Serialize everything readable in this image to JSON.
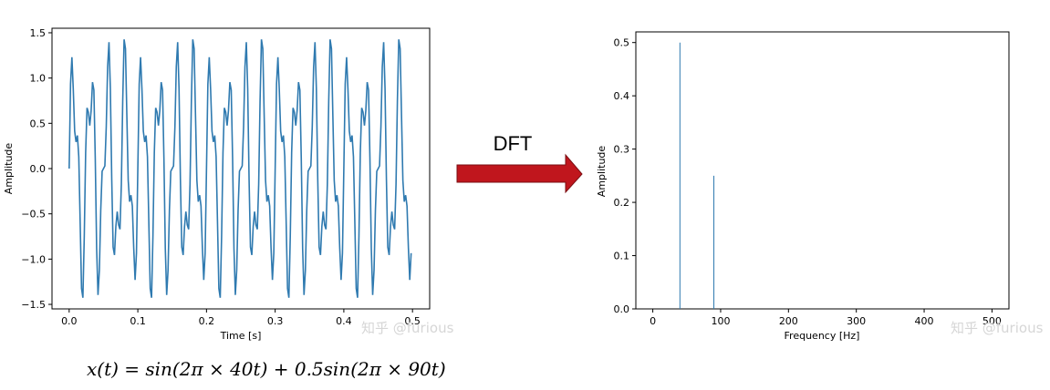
{
  "arrow": {
    "label": "DFT",
    "color": "#c0161d"
  },
  "formula": "x(t) = sin(2π × 40t) + 0.5sin(2π × 90t)",
  "watermark": "知乎 @furious",
  "chart_data": [
    {
      "type": "line",
      "xlabel": "Time [s]",
      "ylabel": "Amplitude",
      "xlim": [
        -0.025,
        0.525
      ],
      "ylim": [
        -1.55,
        1.55
      ],
      "xticks": [
        0.0,
        0.1,
        0.2,
        0.3,
        0.4,
        0.5
      ],
      "xtick_labels": [
        "0.0",
        "0.1",
        "0.2",
        "0.3",
        "0.4",
        "0.5"
      ],
      "yticks": [
        -1.5,
        -1.0,
        -0.5,
        0.0,
        0.5,
        1.0,
        1.5
      ],
      "ytick_labels": [
        "−1.5",
        "−1.0",
        "−0.5",
        "0.0",
        "0.5",
        "1.0",
        "1.5"
      ],
      "grid": false,
      "color": "#2f7ab0",
      "series": [
        {
          "function": "sin(2*pi*40*t) + 0.5*sin(2*pi*90*t)",
          "t_start": 0,
          "t_end": 0.5,
          "sample_rate": 500
        }
      ]
    },
    {
      "type": "bar",
      "xlabel": "Frequency [Hz]",
      "ylabel": "Amplitude",
      "xlim": [
        -25,
        525
      ],
      "ylim": [
        0,
        0.52
      ],
      "xticks": [
        0,
        100,
        200,
        300,
        400,
        500
      ],
      "xtick_labels": [
        "0",
        "100",
        "200",
        "300",
        "400",
        "500"
      ],
      "yticks": [
        0.0,
        0.1,
        0.2,
        0.3,
        0.4,
        0.5
      ],
      "ytick_labels": [
        "0.0",
        "0.1",
        "0.2",
        "0.3",
        "0.4",
        "0.5"
      ],
      "grid": false,
      "color": "#2f7ab0",
      "x": [
        40,
        90
      ],
      "values": [
        0.5,
        0.25
      ]
    }
  ]
}
